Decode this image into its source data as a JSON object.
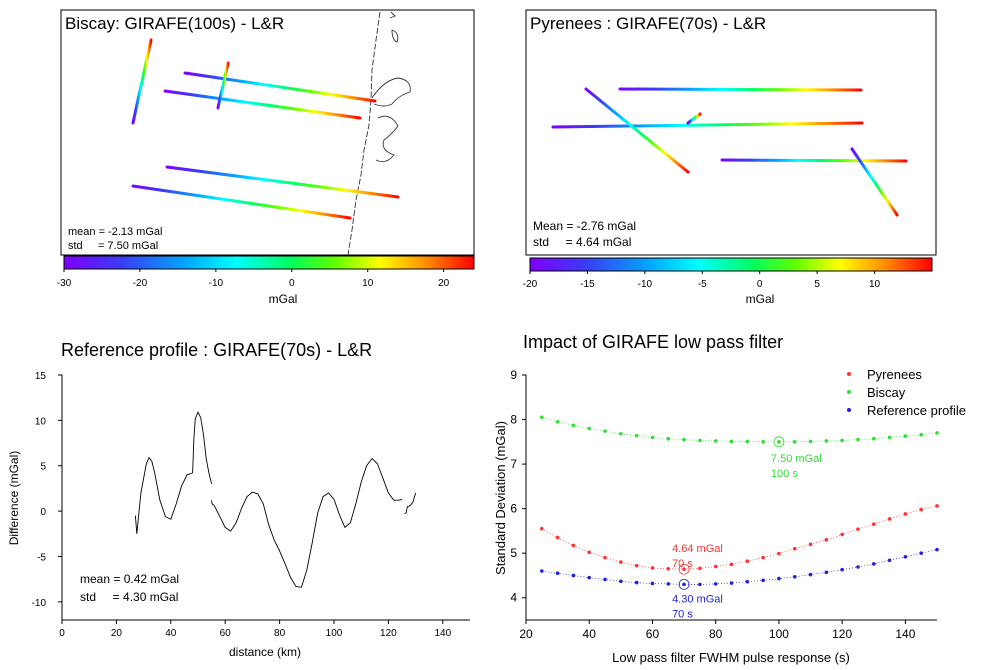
{
  "colorscale": [
    "#7f00ff",
    "#3a3cf5",
    "#00aaff",
    "#00ffff",
    "#00ff60",
    "#60ff00",
    "#ffff00",
    "#ff9000",
    "#ff0000"
  ],
  "chart_data": [
    {
      "type": "map",
      "title": "Biscay: GIRAFE(100s) - L&R",
      "stats": {
        "mean_label": "mean = -2.13 mGal",
        "std_label": "std     = 7.50 mGal"
      },
      "colorbar": {
        "min": -30,
        "max": 24,
        "ticks": [
          "-30",
          "-20",
          "-10",
          "0",
          "10",
          "20"
        ],
        "label": "mGal"
      }
    },
    {
      "type": "map",
      "title": "Pyrenees : GIRAFE(70s) - L&R",
      "stats": {
        "mean_label": "Mean = -2.76 mGal",
        "std_label": "std     = 4.64 mGal"
      },
      "colorbar": {
        "min": -20,
        "max": 15,
        "ticks": [
          "-20",
          "-15",
          "-10",
          "-5",
          "0",
          "5",
          "10"
        ],
        "label": "mGal"
      }
    },
    {
      "type": "line",
      "title": "Reference profile : GIRAFE(70s) - L&R",
      "xlabel": "distance (km)",
      "ylabel": "Difference (mGal)",
      "xlim": [
        0,
        150
      ],
      "ylim": [
        -12,
        15
      ],
      "xticks": [
        0,
        20,
        40,
        60,
        80,
        100,
        120,
        140
      ],
      "yticks": [
        -10,
        -5,
        0,
        5,
        10,
        15
      ],
      "stats": {
        "mean_label": "mean = 0.42 mGal",
        "std_label": "std     = 4.30 mGal"
      },
      "series": [
        {
          "name": "segment 1",
          "x": [
            27,
            27.5,
            29,
            31,
            32,
            33,
            34,
            36,
            38,
            40,
            42,
            44,
            46,
            48
          ],
          "y": [
            -0.5,
            -2.5,
            2,
            5.2,
            5.9,
            5.5,
            4.3,
            1.2,
            -0.6,
            -0.9,
            0.8,
            2.8,
            4,
            4.2
          ]
        },
        {
          "name": "segment 2",
          "x": [
            48,
            48.5,
            49,
            50,
            51,
            52,
            53,
            54,
            55
          ],
          "y": [
            4.2,
            8,
            10.2,
            10.9,
            10.3,
            8.5,
            5.8,
            4.2,
            3
          ]
        },
        {
          "name": "segment 3",
          "x": [
            55,
            55.2,
            56,
            58,
            60,
            62,
            64,
            66,
            68,
            70,
            72,
            74,
            76,
            78,
            80,
            82,
            84,
            86,
            88,
            90,
            92,
            94,
            96,
            98,
            100,
            102,
            104,
            106,
            108,
            110,
            112,
            114,
            116,
            118,
            120,
            122,
            124,
            125
          ],
          "y": [
            1.2,
            0.8,
            0.6,
            -0.6,
            -1.8,
            -2.2,
            -1.3,
            0.3,
            1.6,
            2.1,
            1.9,
            0.8,
            -1.5,
            -3.2,
            -4.4,
            -5.8,
            -7.3,
            -8.3,
            -8.4,
            -6.5,
            -3.5,
            -0.2,
            1.6,
            2,
            1.3,
            -0.4,
            -1.8,
            -1.3,
            0.8,
            3.2,
            5,
            5.8,
            5.2,
            3.6,
            2,
            1.2,
            1.2,
            1.3
          ]
        },
        {
          "name": "segment 4",
          "x": [
            126,
            126.5,
            127,
            128,
            129,
            130
          ],
          "y": [
            -0.3,
            -0.2,
            0.5,
            0.6,
            1,
            2
          ]
        }
      ]
    },
    {
      "type": "scatter",
      "title": "Impact of GIRAFE low pass filter",
      "xlabel": "Low pass filter FWHM pulse response (s)",
      "ylabel": "Standard Deviation (mGal)",
      "xlim": [
        20,
        150
      ],
      "ylim": [
        3.5,
        9
      ],
      "xticks": [
        20,
        40,
        60,
        80,
        100,
        120,
        140
      ],
      "yticks": [
        4,
        5,
        6,
        7,
        8,
        9
      ],
      "x": [
        25,
        30,
        35,
        40,
        45,
        50,
        55,
        60,
        65,
        70,
        75,
        80,
        85,
        90,
        95,
        100,
        105,
        110,
        115,
        120,
        125,
        130,
        135,
        140,
        145,
        150
      ],
      "series": [
        {
          "name": "Pyrenees",
          "color": "#ff3333",
          "values": [
            5.55,
            5.35,
            5.17,
            5.02,
            4.9,
            4.8,
            4.72,
            4.67,
            4.65,
            4.64,
            4.66,
            4.7,
            4.75,
            4.82,
            4.9,
            4.99,
            5.1,
            5.2,
            5.3,
            5.42,
            5.54,
            5.65,
            5.77,
            5.88,
            5.98,
            6.06
          ]
        },
        {
          "name": "Biscay",
          "color": "#33dd33",
          "values": [
            8.05,
            7.95,
            7.87,
            7.8,
            7.74,
            7.68,
            7.64,
            7.6,
            7.57,
            7.55,
            7.53,
            7.52,
            7.51,
            7.51,
            7.5,
            7.5,
            7.5,
            7.51,
            7.52,
            7.53,
            7.55,
            7.57,
            7.6,
            7.63,
            7.66,
            7.7
          ]
        },
        {
          "name": "Reference profile",
          "color": "#2020dd",
          "values": [
            4.6,
            4.55,
            4.5,
            4.45,
            4.41,
            4.37,
            4.34,
            4.32,
            4.31,
            4.3,
            4.3,
            4.31,
            4.33,
            4.36,
            4.39,
            4.43,
            4.47,
            4.52,
            4.57,
            4.63,
            4.69,
            4.76,
            4.84,
            4.92,
            5.0,
            5.08
          ]
        }
      ],
      "annotations": [
        {
          "series": "Biscay",
          "x": 100,
          "y": 7.5,
          "label": "7.50 mGal",
          "sublabel": "100 s"
        },
        {
          "series": "Pyrenees",
          "x": 70,
          "y": 4.64,
          "label": "4.64 mGal",
          "sublabel": "70 s"
        },
        {
          "series": "Reference profile",
          "x": 70,
          "y": 4.3,
          "label": "4.30 mGal",
          "sublabel": "70 s"
        }
      ]
    }
  ]
}
